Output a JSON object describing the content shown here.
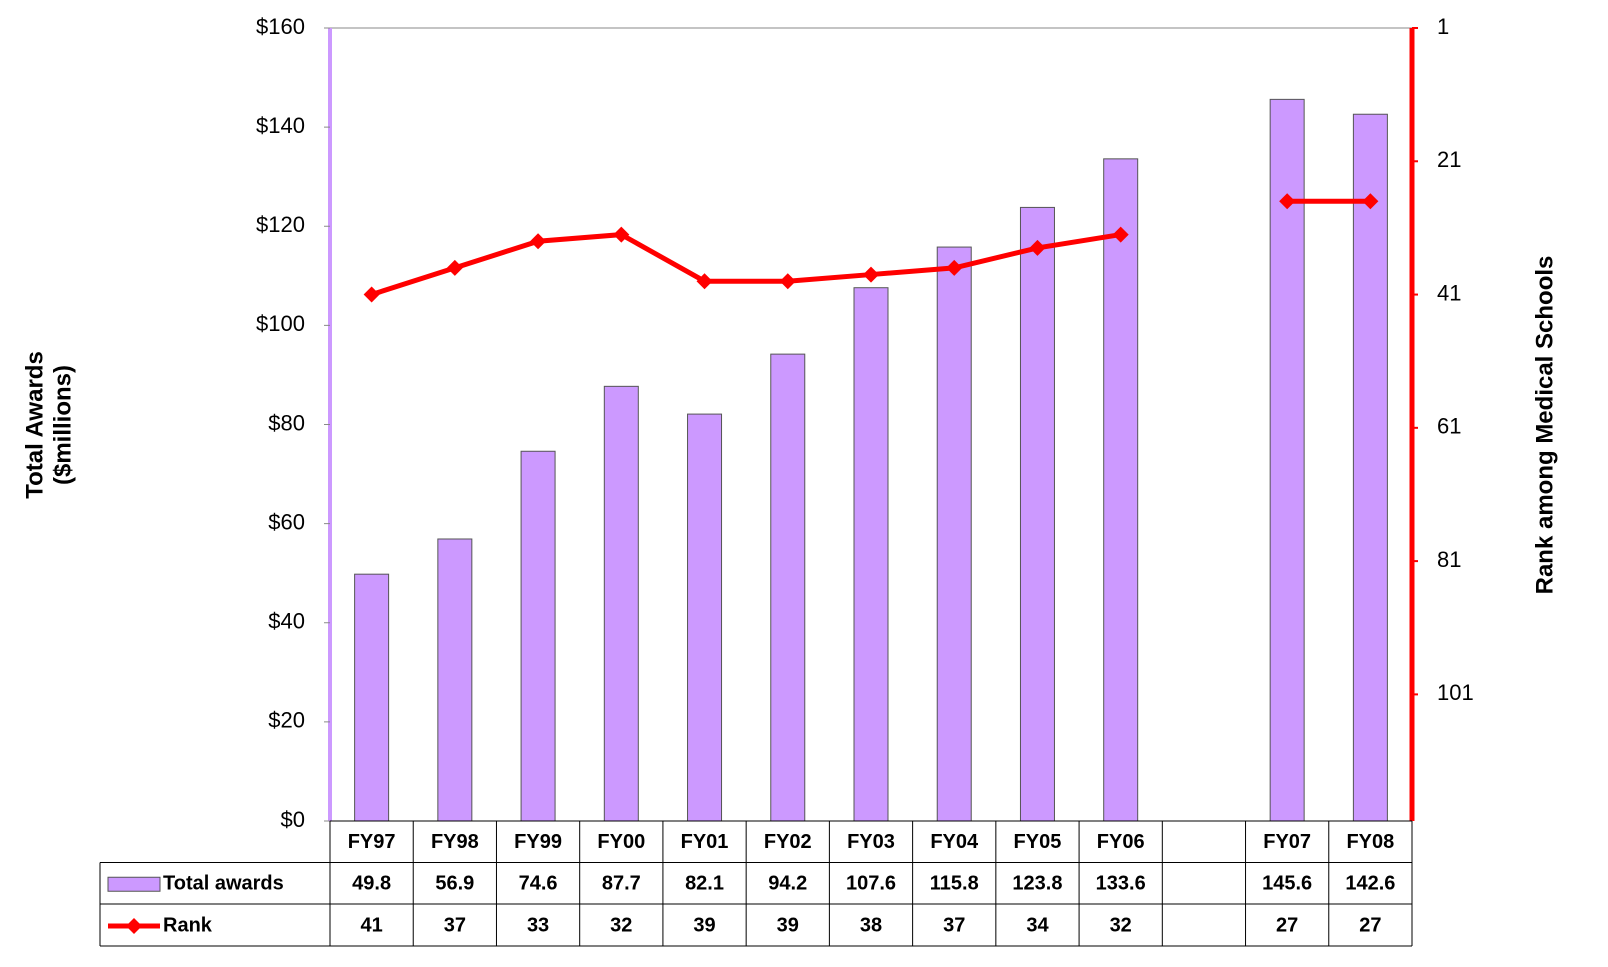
{
  "chart_data": {
    "type": "bar",
    "categories": [
      "FY97",
      "FY98",
      "FY99",
      "FY00",
      "FY01",
      "FY02",
      "FY03",
      "FY04",
      "FY05",
      "FY06",
      null,
      "FY07",
      "FY08"
    ],
    "series": [
      {
        "name": "Total awards",
        "type": "bar",
        "color": "#cc99ff",
        "values": [
          49.8,
          56.9,
          74.6,
          87.7,
          82.1,
          94.2,
          107.6,
          115.8,
          123.8,
          133.6,
          null,
          145.6,
          142.6
        ]
      },
      {
        "name": "Rank",
        "type": "line",
        "axis": "y2",
        "color": "#ff0000",
        "values": [
          41,
          37,
          33,
          32,
          39,
          39,
          38,
          37,
          34,
          32,
          null,
          27,
          27
        ]
      }
    ],
    "ylabel": [
      "Total Awards",
      "($millions)"
    ],
    "y2label": "Rank among Medical Schools",
    "ylim": [
      0,
      160
    ],
    "yticks": [
      {
        "value": 0,
        "label": "$0"
      },
      {
        "value": 20,
        "label": "$20"
      },
      {
        "value": 40,
        "label": "$40"
      },
      {
        "value": 60,
        "label": "$60"
      },
      {
        "value": 80,
        "label": "$80"
      },
      {
        "value": 100,
        "label": "$100"
      },
      {
        "value": 120,
        "label": "$120"
      },
      {
        "value": 140,
        "label": "$140"
      },
      {
        "value": 160,
        "label": "$160"
      }
    ],
    "y2lim": [
      120,
      1
    ],
    "y2ticks": [
      1,
      21,
      41,
      61,
      81,
      101
    ],
    "grid": false,
    "data_table": true
  }
}
